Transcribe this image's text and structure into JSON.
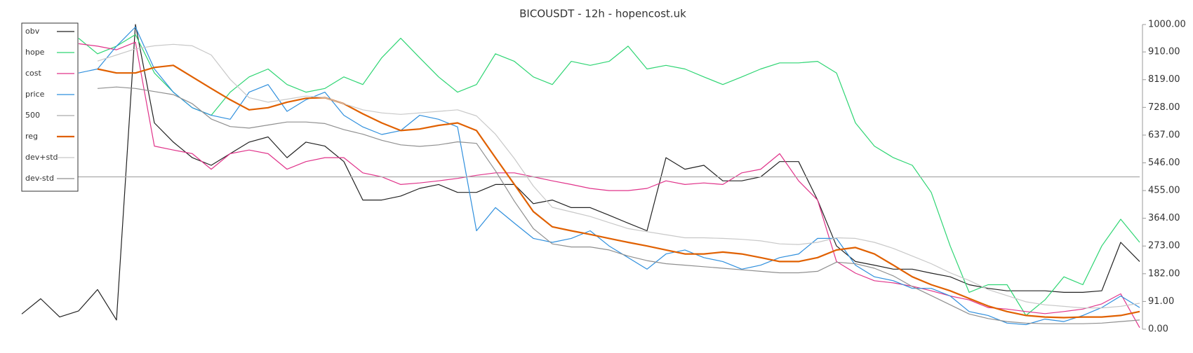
{
  "chart_data": {
    "type": "line",
    "title": "BICOUSDT - 12h - hopencost.uk",
    "categories": [
      null,
      null,
      null,
      null,
      null,
      null,
      null,
      null,
      null,
      null,
      null,
      null,
      null,
      null,
      null,
      null,
      null,
      null,
      null,
      null,
      null,
      null,
      null,
      null,
      null,
      null,
      null,
      null,
      null,
      null,
      null,
      null,
      null,
      null,
      null,
      null,
      null,
      null,
      null,
      null,
      null,
      null,
      null,
      null,
      null,
      null,
      null,
      null,
      null,
      null,
      null,
      null,
      null,
      null,
      null,
      null,
      null,
      null,
      null,
      null
    ],
    "ylim": [
      0,
      1000
    ],
    "yticks": [
      {
        "value": 0,
        "label": "0.00"
      },
      {
        "value": 91,
        "label": "91.00"
      },
      {
        "value": 182,
        "label": "182.00"
      },
      {
        "value": 273,
        "label": "273.00"
      },
      {
        "value": 364,
        "label": "364.00"
      },
      {
        "value": 455,
        "label": "455.00"
      },
      {
        "value": 546,
        "label": "546.00"
      },
      {
        "value": 637,
        "label": "637.00"
      },
      {
        "value": 728,
        "label": "728.00"
      },
      {
        "value": 819,
        "label": "819.00"
      },
      {
        "value": 910,
        "label": "910.00"
      },
      {
        "value": 1000,
        "label": "1000.00"
      }
    ],
    "y_axis_side": "right",
    "legend": "upper left",
    "series": [
      {
        "name": "obv",
        "color": "#222222",
        "width": 1.2,
        "values": [
          50,
          100,
          40,
          60,
          130,
          30,
          1000,
          677,
          614,
          563,
          538,
          576,
          614,
          631,
          563,
          614,
          601,
          550,
          424,
          424,
          437,
          462,
          475,
          449,
          449,
          475,
          475,
          412,
          424,
          399,
          399,
          374,
          348,
          323,
          563,
          525,
          538,
          487,
          487,
          500,
          550,
          550,
          424,
          273,
          222,
          210,
          197,
          197,
          184,
          172,
          146,
          134,
          126,
          126,
          126,
          121,
          121,
          126,
          285,
          222
        ]
      },
      {
        "name": "hope",
        "color": "#2ed573",
        "width": 1.2,
        "values": [
          null,
          null,
          null,
          955,
          904,
          929,
          967,
          841,
          778,
          727,
          702,
          778,
          828,
          854,
          803,
          778,
          790,
          828,
          803,
          891,
          955,
          891,
          828,
          778,
          803,
          904,
          879,
          828,
          803,
          879,
          866,
          879,
          929,
          854,
          866,
          854,
          828,
          803,
          828,
          854,
          874,
          874,
          879,
          841,
          677,
          601,
          563,
          538,
          449,
          273,
          121,
          146,
          146,
          45,
          96,
          172,
          146,
          273,
          361,
          285
        ]
      },
      {
        "name": "cost",
        "color": "#e0338a",
        "width": 1.2,
        "values": [
          null,
          null,
          null,
          937,
          929,
          917,
          942,
          601,
          588,
          576,
          525,
          576,
          588,
          576,
          525,
          550,
          563,
          563,
          513,
          500,
          475,
          480,
          487,
          495,
          505,
          513,
          513,
          500,
          487,
          475,
          462,
          455,
          455,
          462,
          487,
          475,
          480,
          475,
          513,
          525,
          576,
          487,
          424,
          222,
          184,
          159,
          152,
          141,
          126,
          109,
          96,
          71,
          66,
          58,
          51,
          58,
          66,
          83,
          116,
          5
        ]
      },
      {
        "name": "price",
        "color": "#2f8fdd",
        "width": 1.2,
        "values": [
          null,
          null,
          null,
          841,
          854,
          929,
          992,
          854,
          778,
          727,
          702,
          689,
          778,
          803,
          715,
          753,
          778,
          702,
          664,
          639,
          652,
          702,
          689,
          664,
          323,
          399,
          348,
          298,
          285,
          298,
          323,
          273,
          235,
          197,
          247,
          260,
          235,
          222,
          197,
          210,
          235,
          247,
          298,
          298,
          210,
          172,
          159,
          134,
          134,
          109,
          58,
          45,
          20,
          15,
          33,
          25,
          45,
          71,
          109,
          71
        ]
      },
      {
        "name": "500",
        "color": "#aaaaaa",
        "width": 1.2,
        "values": [
          500,
          500,
          500,
          500,
          500,
          500,
          500,
          500,
          500,
          500,
          500,
          500,
          500,
          500,
          500,
          500,
          500,
          500,
          500,
          500,
          500,
          500,
          500,
          500,
          500,
          500,
          500,
          500,
          500,
          500,
          500,
          500,
          500,
          500,
          500,
          500,
          500,
          500,
          500,
          500,
          500,
          500,
          500,
          500,
          500,
          500,
          500,
          500,
          500,
          500,
          500,
          500,
          500,
          500,
          500,
          500,
          500,
          500,
          500,
          500
        ]
      },
      {
        "name": "reg",
        "color": "#e06000",
        "width": 2.2,
        "values": [
          null,
          null,
          null,
          null,
          854,
          841,
          841,
          859,
          866,
          828,
          790,
          753,
          720,
          727,
          745,
          758,
          760,
          740,
          707,
          677,
          652,
          657,
          669,
          677,
          652,
          563,
          475,
          386,
          336,
          323,
          311,
          298,
          285,
          273,
          260,
          247,
          247,
          253,
          247,
          235,
          222,
          222,
          235,
          260,
          268,
          247,
          210,
          172,
          146,
          126,
          101,
          76,
          58,
          45,
          40,
          38,
          40,
          40,
          45,
          58
        ]
      },
      {
        "name": "dev+std",
        "color": "#c8c8c8",
        "width": 1.2,
        "values": [
          null,
          null,
          null,
          null,
          880,
          900,
          920,
          930,
          935,
          930,
          900,
          820,
          760,
          745,
          755,
          765,
          760,
          740,
          720,
          710,
          705,
          710,
          715,
          720,
          700,
          640,
          560,
          470,
          400,
          385,
          370,
          350,
          330,
          320,
          310,
          300,
          300,
          298,
          295,
          290,
          280,
          278,
          285,
          300,
          298,
          285,
          265,
          240,
          215,
          185,
          160,
          130,
          110,
          90,
          80,
          75,
          70,
          70,
          75,
          85
        ]
      },
      {
        "name": "dev-std",
        "color": "#8f8f8f",
        "width": 1.2,
        "values": [
          null,
          null,
          null,
          null,
          790,
          795,
          790,
          780,
          770,
          740,
          690,
          665,
          660,
          670,
          680,
          680,
          675,
          655,
          640,
          620,
          605,
          600,
          605,
          615,
          610,
          520,
          420,
          330,
          280,
          270,
          270,
          260,
          240,
          225,
          215,
          210,
          205,
          200,
          195,
          190,
          185,
          185,
          190,
          220,
          215,
          200,
          175,
          140,
          110,
          80,
          50,
          35,
          25,
          20,
          18,
          18,
          18,
          20,
          25,
          30
        ]
      }
    ]
  }
}
